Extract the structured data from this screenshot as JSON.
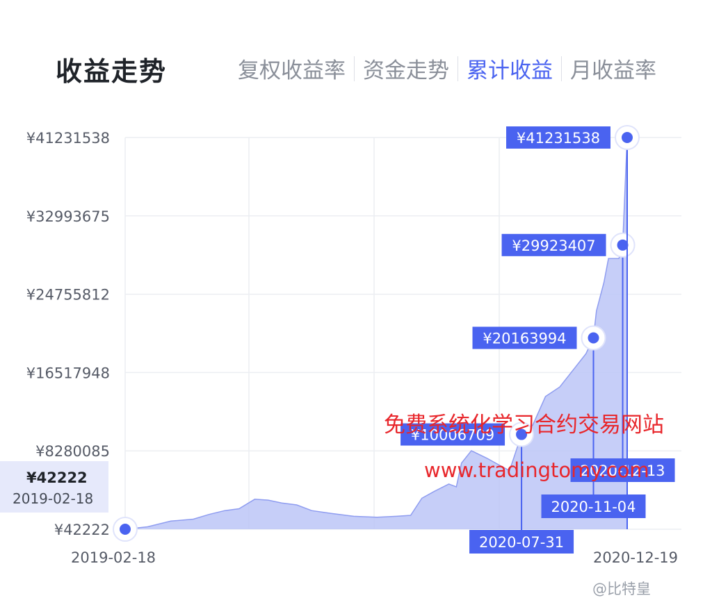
{
  "header": {
    "title": "收益走势",
    "tabs": [
      {
        "label": "复权收益率",
        "active": false
      },
      {
        "label": "资金走势",
        "active": false
      },
      {
        "label": "累计收益",
        "active": true
      },
      {
        "label": "月收益率",
        "active": false
      }
    ]
  },
  "colors": {
    "accent": "#4a63f0",
    "area_fill": "#bcc5f7",
    "label_bg": "#4a63f0",
    "watermark": "#e8262b"
  },
  "start_tooltip": {
    "value": "¥42222",
    "date": "2019-02-18"
  },
  "watermark": {
    "line1": "免费系统化学习合约交易网站",
    "line2": "www.tradingtomy.com"
  },
  "credit": "@比特皇",
  "chart_data": {
    "type": "area",
    "x_range": [
      "2019-02-18",
      "2020-12-19"
    ],
    "x_tick_labels": [
      "2019-02-18",
      "2020-12-19"
    ],
    "y_tick_labels": [
      "¥42222",
      "¥8280085",
      "¥16517948",
      "¥24755812",
      "¥32993675",
      "¥41231538"
    ],
    "y_ticks": [
      42222,
      8280085,
      16517948,
      24755812,
      32993675,
      41231538
    ],
    "ylim": [
      42222,
      41231538
    ],
    "grid": true,
    "series": [
      {
        "points": [
          [
            "2019-02-18",
            42222
          ],
          [
            "2019-03-20",
            300000
          ],
          [
            "2019-04-20",
            900000
          ],
          [
            "2019-05-20",
            1100000
          ],
          [
            "2019-06-10",
            1600000
          ],
          [
            "2019-07-01",
            2000000
          ],
          [
            "2019-07-20",
            2200000
          ],
          [
            "2019-08-10",
            3200000
          ],
          [
            "2019-08-28",
            3100000
          ],
          [
            "2019-09-15",
            2800000
          ],
          [
            "2019-10-05",
            2600000
          ],
          [
            "2019-10-25",
            2000000
          ],
          [
            "2019-11-20",
            1700000
          ],
          [
            "2019-12-20",
            1400000
          ],
          [
            "2020-01-20",
            1300000
          ],
          [
            "2020-02-15",
            1400000
          ],
          [
            "2020-03-05",
            1500000
          ],
          [
            "2020-03-20",
            3300000
          ],
          [
            "2020-04-05",
            4000000
          ],
          [
            "2020-04-25",
            4800000
          ],
          [
            "2020-05-05",
            4500000
          ],
          [
            "2020-05-12",
            7000000
          ],
          [
            "2020-05-25",
            8300000
          ],
          [
            "2020-06-15",
            7500000
          ],
          [
            "2020-07-01",
            6800000
          ],
          [
            "2020-07-15",
            6200000
          ],
          [
            "2020-07-31",
            10006709
          ],
          [
            "2020-08-15",
            11000000
          ],
          [
            "2020-09-01",
            14000000
          ],
          [
            "2020-09-20",
            15000000
          ],
          [
            "2020-10-10",
            17000000
          ],
          [
            "2020-10-25",
            18500000
          ],
          [
            "2020-11-04",
            20163994
          ],
          [
            "2020-11-08",
            23000000
          ],
          [
            "2020-11-18",
            26000000
          ],
          [
            "2020-11-24",
            28500000
          ],
          [
            "2020-12-08",
            28500000
          ],
          [
            "2020-12-13",
            29923407
          ],
          [
            "2020-12-19",
            41231538
          ]
        ]
      }
    ],
    "annotations": [
      {
        "date": "2020-07-31",
        "value": 10006709,
        "value_label": "¥10006709",
        "date_label": "2020-07-31"
      },
      {
        "date": "2020-11-04",
        "value": 20163994,
        "value_label": "¥20163994",
        "date_label": "2020-11-04"
      },
      {
        "date": "2020-12-13",
        "value": 29923407,
        "value_label": "¥29923407",
        "date_label": "2020-12-13"
      },
      {
        "date": "2020-12-19",
        "value": 41231538,
        "value_label": "¥41231538",
        "date_label": ""
      }
    ]
  }
}
